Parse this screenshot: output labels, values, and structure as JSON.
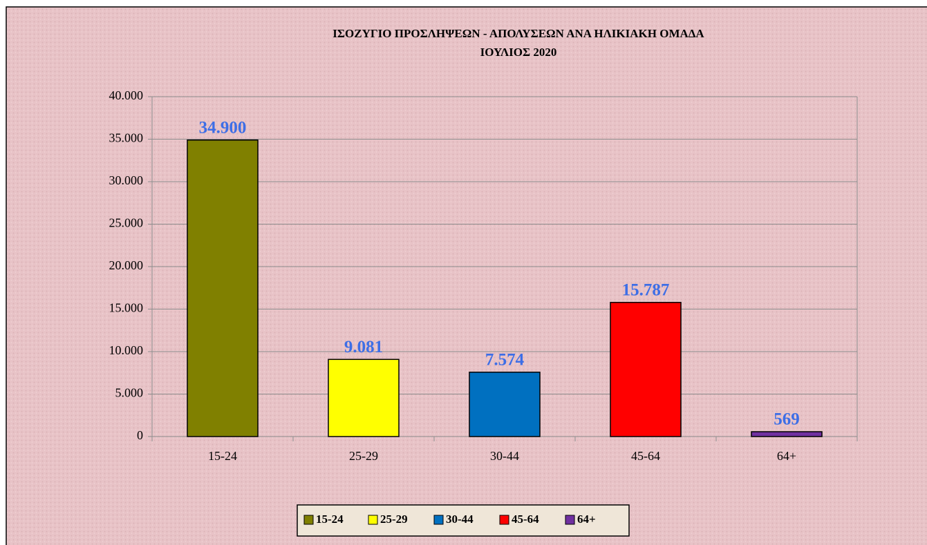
{
  "chart_data": {
    "type": "bar",
    "title": "ΙΣΟΖΥΓΙΟ ΠΡΟΣΛΗΨΕΩΝ - ΑΠΟΛΥΣΕΩΝ ΑΝΑ ΗΛΙΚΙΑΚΗ ΟΜΑΔΑ",
    "subtitle": "ΙΟΥΛΙΟΣ  2020",
    "categories": [
      "15-24",
      "25-29",
      "30-44",
      "45-64",
      "64+"
    ],
    "values": [
      34900,
      9081,
      7574,
      15787,
      569
    ],
    "value_labels": [
      "34.900",
      "9.081",
      "7.574",
      "15.787",
      "569"
    ],
    "colors": [
      "#808000",
      "#ffff00",
      "#0070c0",
      "#ff0000",
      "#7030a0"
    ],
    "ylim": [
      0,
      40000
    ],
    "yticks": [
      0,
      {
        "value": 5000,
        "label": "5.000"
      },
      {
        "value": 10000,
        "label": "10.000"
      },
      {
        "value": 15000,
        "label": "15.000"
      },
      {
        "value": 20000,
        "label": "20.000"
      },
      {
        "value": 25000,
        "label": "25.000"
      },
      {
        "value": 30000,
        "label": "30.000"
      },
      {
        "value": 35000,
        "label": "35.000"
      },
      {
        "value": 40000,
        "label": "40.000"
      }
    ],
    "grid": true,
    "legend": "bottom"
  }
}
